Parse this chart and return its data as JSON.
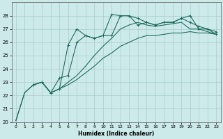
{
  "xlabel": "Humidex (Indice chaleur)",
  "background_color": "#cdeaea",
  "grid_color": "#a8cccc",
  "line_color": "#1f6b5e",
  "xlim": [
    -0.5,
    23.5
  ],
  "ylim": [
    20,
    29
  ],
  "yticks": [
    20,
    21,
    22,
    23,
    24,
    25,
    26,
    27,
    28
  ],
  "xticks": [
    0,
    1,
    2,
    3,
    4,
    5,
    6,
    7,
    8,
    9,
    10,
    11,
    12,
    13,
    14,
    15,
    16,
    17,
    18,
    19,
    20,
    21,
    22,
    23
  ],
  "line1_x": [
    0,
    1,
    2,
    3,
    4,
    5,
    6,
    7,
    8,
    9,
    10,
    11,
    12,
    13,
    14,
    15,
    16,
    17,
    18,
    19,
    20,
    21,
    22,
    23
  ],
  "line1_y": [
    20.1,
    22.2,
    22.8,
    23.0,
    22.2,
    22.5,
    22.8,
    23.2,
    23.7,
    24.2,
    24.8,
    25.2,
    25.7,
    26.0,
    26.3,
    26.5,
    26.5,
    26.6,
    26.7,
    26.7,
    26.8,
    26.7,
    26.7,
    26.6
  ],
  "line2_x": [
    0,
    1,
    2,
    3,
    4,
    5,
    6,
    7,
    8,
    9,
    10,
    11,
    12,
    13,
    14,
    15,
    16,
    17,
    18,
    19,
    20,
    21,
    22,
    23
  ],
  "line2_y": [
    20.1,
    22.2,
    22.8,
    23.0,
    22.2,
    22.5,
    23.0,
    23.5,
    24.2,
    25.0,
    25.7,
    26.3,
    27.0,
    27.3,
    27.5,
    27.3,
    27.2,
    27.3,
    27.4,
    27.5,
    27.0,
    27.0,
    26.8,
    26.6
  ],
  "line3_x": [
    2,
    3,
    4,
    5,
    6,
    7,
    8,
    9,
    10,
    11,
    12,
    13,
    14,
    15,
    16,
    17,
    18,
    19,
    20,
    21,
    22,
    23
  ],
  "line3_y": [
    22.8,
    23.0,
    22.2,
    22.5,
    25.8,
    27.0,
    26.5,
    26.3,
    26.5,
    28.1,
    28.0,
    28.0,
    27.3,
    27.5,
    27.3,
    27.5,
    27.5,
    27.8,
    28.0,
    27.0,
    27.0,
    26.8
  ],
  "line4_x": [
    2,
    3,
    4,
    5,
    6,
    7,
    8,
    9,
    10,
    11,
    12,
    13,
    14,
    15,
    16,
    17,
    18,
    19,
    20,
    21,
    22,
    23
  ],
  "line4_y": [
    22.8,
    23.0,
    22.2,
    23.3,
    23.5,
    26.0,
    26.5,
    26.3,
    26.5,
    26.5,
    28.0,
    28.0,
    27.8,
    27.5,
    27.3,
    27.5,
    27.5,
    27.8,
    27.5,
    27.2,
    27.0,
    26.6
  ]
}
